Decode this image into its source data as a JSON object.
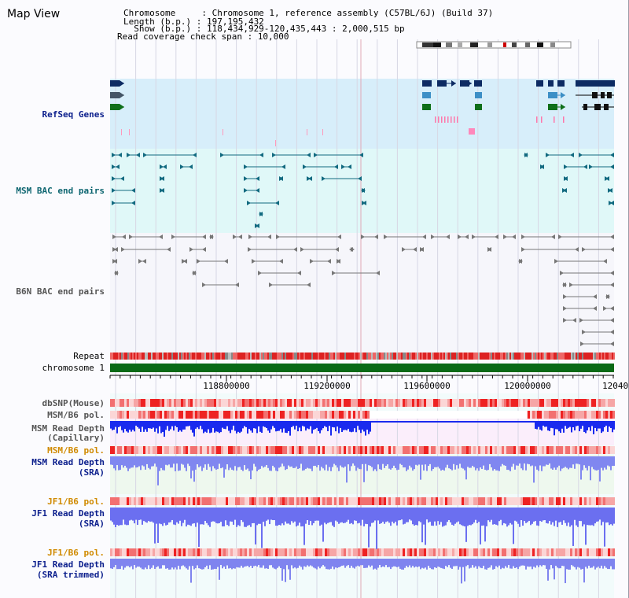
{
  "app": {
    "title": "Map View"
  },
  "header": {
    "chromosome_label": "Chromosome     : Chromosome 1, reference assembly (C57BL/6J) (Build 37)",
    "length_label": "Length (b.p.) : 197,195,432",
    "show_label": "  Show (b.p.) : 118,434,929-120,435,443 : 2,000,515 bp",
    "coverage_label": "Read coverage check span : 10,000"
  },
  "tracks": {
    "refseq": "RefSeq Genes",
    "msm_bac": "MSM BAC end pairs",
    "b6n_bac": "B6N BAC end pairs",
    "repeat": "Repeat",
    "chromosome": "chromosome 1",
    "dbsnp": "dbSNP(Mouse)",
    "msm_b6_pol_1": "MSM/B6 pol.",
    "msm_depth_cap_1": "MSM Read Depth",
    "msm_depth_cap_2": "(Capillary)",
    "msm_b6_pol_2": "MSM/B6 pol.",
    "msm_depth_sra_1": "MSM Read Depth",
    "msm_depth_sra_2": "(SRA)",
    "jf1_b6_pol_1": "JF1/B6 pol.",
    "jf1_depth_sra_1": "JF1 Read Depth",
    "jf1_depth_sra_2": "(SRA)",
    "jf1_b6_pol_2": "JF1/B6 pol.",
    "jf1_depth_trim_1": "JF1 Read Depth",
    "jf1_depth_trim_2": "(SRA trimmed)"
  },
  "axis": {
    "ticks": [
      "118800000",
      "119200000",
      "119600000",
      "120000000",
      "12040"
    ]
  },
  "colors": {
    "navy": "#0d2b63",
    "teal": "#126a80",
    "green": "#0f6f1a",
    "label_dark": "#0b1e8c",
    "label_orange": "#d08a00",
    "label_teal": "#0d6570",
    "label_gray": "#555555",
    "refseq_bg": "#d7eefa",
    "msm_bg": "#e0f8f8",
    "depth_blue": "#1a2aee"
  }
}
